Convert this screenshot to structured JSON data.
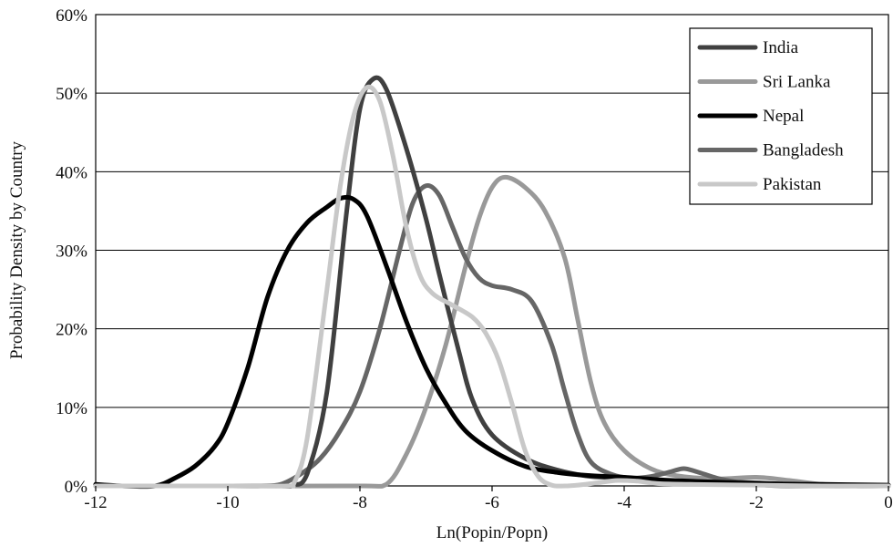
{
  "chart_data": {
    "type": "line",
    "title": "",
    "xlabel": "Ln(Popin/Popn)",
    "ylabel": "Probability Density by Country",
    "xlim": [
      -12,
      0
    ],
    "ylim": [
      0,
      60
    ],
    "x_ticks": [
      -12,
      -10,
      -8,
      -6,
      -4,
      -2,
      0
    ],
    "x_tick_labels": [
      "-12",
      "-10",
      "-8",
      "-6",
      "-4",
      "-2",
      "0"
    ],
    "y_ticks": [
      0,
      10,
      20,
      30,
      40,
      50,
      60
    ],
    "y_tick_labels": [
      "0%",
      "10%",
      "20%",
      "30%",
      "40%",
      "50%",
      "60%"
    ],
    "grid": "horizontal",
    "legend_position": "top-right",
    "series": [
      {
        "name": "India",
        "color": "#404040",
        "points": [
          [
            -12,
            0
          ],
          [
            -11,
            0
          ],
          [
            -10,
            0
          ],
          [
            -9.2,
            0
          ],
          [
            -9,
            0.1
          ],
          [
            -8.8,
            1.5
          ],
          [
            -8.5,
            12
          ],
          [
            -8.2,
            35
          ],
          [
            -8,
            48
          ],
          [
            -7.8,
            51.8
          ],
          [
            -7.6,
            50.5
          ],
          [
            -7.3,
            43
          ],
          [
            -7,
            34
          ],
          [
            -6.8,
            27
          ],
          [
            -6.5,
            17
          ],
          [
            -6.3,
            11
          ],
          [
            -6,
            6.5
          ],
          [
            -5.5,
            3.5
          ],
          [
            -5,
            2
          ],
          [
            -4.5,
            1.2
          ],
          [
            -4,
            1
          ],
          [
            -3.5,
            0.6
          ],
          [
            -3,
            0.5
          ],
          [
            -2.5,
            0.5
          ],
          [
            -2,
            0.4
          ],
          [
            -1.5,
            0.2
          ],
          [
            -1,
            0.1
          ],
          [
            -0.5,
            0
          ],
          [
            0,
            0
          ]
        ]
      },
      {
        "name": "Sri Lanka",
        "color": "#999999",
        "points": [
          [
            -12,
            0
          ],
          [
            -10,
            0
          ],
          [
            -8,
            0
          ],
          [
            -7.6,
            0.2
          ],
          [
            -7.3,
            4
          ],
          [
            -7,
            10
          ],
          [
            -6.7,
            18
          ],
          [
            -6.4,
            28
          ],
          [
            -6.2,
            34
          ],
          [
            -6,
            38
          ],
          [
            -5.8,
            39.3
          ],
          [
            -5.5,
            38
          ],
          [
            -5.2,
            35
          ],
          [
            -4.9,
            29
          ],
          [
            -4.7,
            21
          ],
          [
            -4.5,
            13
          ],
          [
            -4.3,
            8
          ],
          [
            -4,
            4.5
          ],
          [
            -3.6,
            2.2
          ],
          [
            -3.2,
            1.3
          ],
          [
            -2.6,
            0.9
          ],
          [
            -2,
            1.1
          ],
          [
            -1.5,
            0.7
          ],
          [
            -1,
            0.2
          ],
          [
            -0.5,
            0
          ],
          [
            0,
            0
          ]
        ]
      },
      {
        "name": "Nepal",
        "color": "#000000",
        "points": [
          [
            -12,
            0.2
          ],
          [
            -11.6,
            0
          ],
          [
            -11.1,
            0
          ],
          [
            -10.8,
            1
          ],
          [
            -10.5,
            2.5
          ],
          [
            -10.2,
            5
          ],
          [
            -10,
            8
          ],
          [
            -9.7,
            15
          ],
          [
            -9.4,
            24
          ],
          [
            -9.1,
            30
          ],
          [
            -8.8,
            33.5
          ],
          [
            -8.5,
            35.5
          ],
          [
            -8.3,
            36.6
          ],
          [
            -8.1,
            36.5
          ],
          [
            -7.9,
            34.5
          ],
          [
            -7.6,
            28
          ],
          [
            -7.3,
            21
          ],
          [
            -7,
            15
          ],
          [
            -6.7,
            10.5
          ],
          [
            -6.4,
            7
          ],
          [
            -6,
            4.5
          ],
          [
            -5.5,
            2.5
          ],
          [
            -5,
            1.7
          ],
          [
            -4.5,
            1.3
          ],
          [
            -4,
            1.1
          ],
          [
            -3.5,
            0.8
          ],
          [
            -3,
            0.6
          ],
          [
            -2,
            0.3
          ],
          [
            -1,
            0.2
          ],
          [
            0,
            0.1
          ]
        ]
      },
      {
        "name": "Bangladesh",
        "color": "#666666",
        "points": [
          [
            -12,
            0
          ],
          [
            -10,
            0
          ],
          [
            -9.5,
            0
          ],
          [
            -9.2,
            0.2
          ],
          [
            -8.9,
            1.5
          ],
          [
            -8.6,
            3.5
          ],
          [
            -8.3,
            7
          ],
          [
            -8,
            12
          ],
          [
            -7.7,
            20
          ],
          [
            -7.4,
            30
          ],
          [
            -7.2,
            36
          ],
          [
            -7,
            38.2
          ],
          [
            -6.8,
            37
          ],
          [
            -6.6,
            33
          ],
          [
            -6.4,
            29
          ],
          [
            -6.2,
            26.5
          ],
          [
            -6,
            25.5
          ],
          [
            -5.7,
            25
          ],
          [
            -5.4,
            23.5
          ],
          [
            -5.1,
            18
          ],
          [
            -4.9,
            12
          ],
          [
            -4.7,
            6.5
          ],
          [
            -4.5,
            3
          ],
          [
            -4.2,
            1.5
          ],
          [
            -3.9,
            1
          ],
          [
            -3.6,
            1.2
          ],
          [
            -3.3,
            1.8
          ],
          [
            -3.1,
            2.2
          ],
          [
            -2.9,
            1.8
          ],
          [
            -2.6,
            1
          ],
          [
            -2.3,
            0.5
          ],
          [
            -2,
            0.2
          ],
          [
            -1.5,
            0
          ],
          [
            0,
            0
          ]
        ]
      },
      {
        "name": "Pakistan",
        "color": "#c8c8c8",
        "points": [
          [
            -12,
            0
          ],
          [
            -10,
            0
          ],
          [
            -9.1,
            0
          ],
          [
            -9,
            0.3
          ],
          [
            -8.8,
            6
          ],
          [
            -8.5,
            25
          ],
          [
            -8.3,
            38
          ],
          [
            -8.1,
            47
          ],
          [
            -7.9,
            50.7
          ],
          [
            -7.7,
            49
          ],
          [
            -7.5,
            42
          ],
          [
            -7.3,
            33
          ],
          [
            -7.1,
            27
          ],
          [
            -6.9,
            24.5
          ],
          [
            -6.6,
            23
          ],
          [
            -6.3,
            21.5
          ],
          [
            -6.1,
            19.5
          ],
          [
            -5.9,
            16
          ],
          [
            -5.7,
            10.5
          ],
          [
            -5.5,
            4.5
          ],
          [
            -5.3,
            1.2
          ],
          [
            -5.1,
            0.1
          ],
          [
            -4.9,
            0
          ],
          [
            -4.7,
            0.1
          ],
          [
            -4.4,
            0.4
          ],
          [
            -4.1,
            0.7
          ],
          [
            -3.8,
            0.6
          ],
          [
            -3.5,
            0.3
          ],
          [
            -3,
            0.2
          ],
          [
            -2,
            0.1
          ],
          [
            -1,
            0
          ],
          [
            0,
            0
          ]
        ]
      }
    ]
  }
}
